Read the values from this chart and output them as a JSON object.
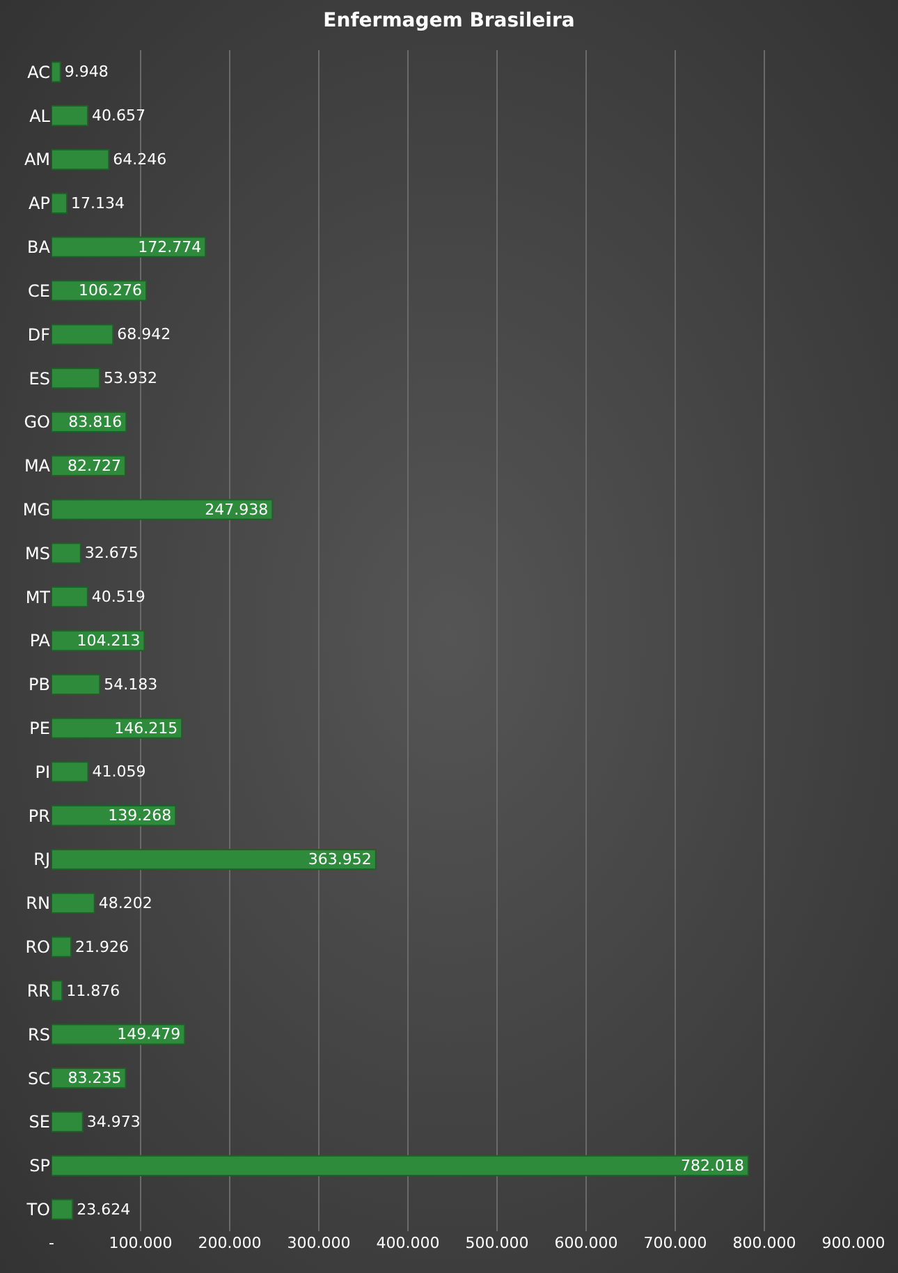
{
  "chart_data": {
    "type": "bar",
    "title": "Enfermagem Brasileira",
    "orientation": "horizontal",
    "categories": [
      "AC",
      "AL",
      "AM",
      "AP",
      "BA",
      "CE",
      "DF",
      "ES",
      "GO",
      "MA",
      "MG",
      "MS",
      "MT",
      "PA",
      "PB",
      "PE",
      "PI",
      "PR",
      "RJ",
      "RN",
      "RO",
      "RR",
      "RS",
      "SC",
      "SE",
      "SP",
      "TO"
    ],
    "values": [
      9948,
      40657,
      64246,
      17134,
      172774,
      106276,
      68942,
      53932,
      83816,
      82727,
      247938,
      32675,
      40519,
      104213,
      54183,
      146215,
      41059,
      139268,
      363952,
      48202,
      21926,
      11876,
      149479,
      83235,
      34973,
      782018,
      23624
    ],
    "value_labels": [
      "9.948",
      "40.657",
      "64.246",
      "17.134",
      "172.774",
      "106.276",
      "68.942",
      "53.932",
      "83.816",
      "82.727",
      "247.938",
      "32.675",
      "40.519",
      "104.213",
      "54.183",
      "146.215",
      "41.059",
      "139.268",
      "363.952",
      "48.202",
      "21.926",
      "11.876",
      "149.479",
      "83.235",
      "34.973",
      "782.018",
      "23.624"
    ],
    "color": "#2e8b3c",
    "xlim": [
      0,
      900000
    ],
    "xticks": [
      {
        "value": 0,
        "label": "-"
      },
      {
        "value": 100000,
        "label": "100.000"
      },
      {
        "value": 200000,
        "label": "200.000"
      },
      {
        "value": 300000,
        "label": "300.000"
      },
      {
        "value": 400000,
        "label": "400.000"
      },
      {
        "value": 500000,
        "label": "500.000"
      },
      {
        "value": 600000,
        "label": "600.000"
      },
      {
        "value": 700000,
        "label": "700.000"
      },
      {
        "value": 800000,
        "label": "800.000"
      },
      {
        "value": 900000,
        "label": "900.000"
      }
    ],
    "grid": "x"
  }
}
